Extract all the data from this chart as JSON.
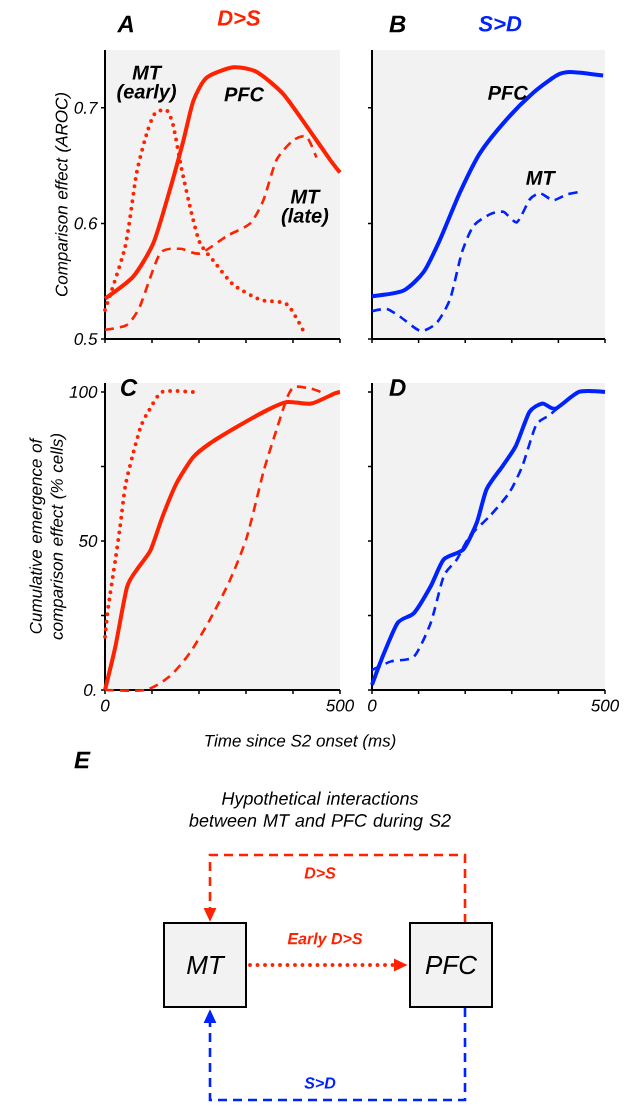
{
  "chart_data": [
    {
      "type": "line",
      "title": "D>S",
      "annotations": [
        "A"
      ],
      "ylabel": "Comparison effect (AROC)",
      "xlim": [
        0,
        500
      ],
      "ylim": [
        0.5,
        0.75
      ],
      "xticks": [
        0,
        100,
        200,
        300,
        400,
        500
      ],
      "yticks": [
        0.5,
        0.6,
        0.7
      ],
      "tick_labels": "y",
      "series": [
        {
          "name": "PFC",
          "color": "#ff2200",
          "line_style": "solid",
          "x": [
            0,
            60,
            103,
            138,
            167,
            188,
            216,
            273,
            323,
            379,
            436,
            479,
            500
          ],
          "values": [
            0.535,
            0.554,
            0.583,
            0.629,
            0.672,
            0.706,
            0.726,
            0.735,
            0.731,
            0.712,
            0.68,
            0.655,
            0.644
          ]
        },
        {
          "name": "MT (early)",
          "color": "#ff2200",
          "line_style": "dotted",
          "x": [
            0,
            43,
            67,
            89,
            106,
            131,
            145,
            163,
            184,
            202,
            230,
            273,
            330,
            387,
            422
          ],
          "values": [
            0.525,
            0.58,
            0.643,
            0.678,
            0.695,
            0.698,
            0.685,
            0.647,
            0.609,
            0.583,
            0.568,
            0.547,
            0.534,
            0.53,
            0.507
          ]
        },
        {
          "name": "MT (late)",
          "color": "#ff2200",
          "line_style": "dashed",
          "x": [
            0,
            46,
            74,
            117,
            160,
            202,
            259,
            309,
            337,
            365,
            401,
            429,
            450
          ],
          "values": [
            0.508,
            0.512,
            0.528,
            0.574,
            0.578,
            0.574,
            0.589,
            0.6,
            0.62,
            0.655,
            0.672,
            0.675,
            0.657
          ]
        }
      ]
    },
    {
      "type": "line",
      "title": "S>D",
      "annotations": [
        "B"
      ],
      "xlim": [
        0,
        500
      ],
      "ylim": [
        0.5,
        0.75
      ],
      "xticks": [
        0,
        100,
        200,
        300,
        400,
        500
      ],
      "yticks": [
        0.5,
        0.6,
        0.7
      ],
      "tick_labels": false,
      "series": [
        {
          "name": "PFC",
          "color": "#0022ff",
          "line_style": "solid",
          "x": [
            0,
            68,
            111,
            146,
            189,
            232,
            289,
            346,
            396,
            425,
            496
          ],
          "values": [
            0.537,
            0.542,
            0.558,
            0.586,
            0.627,
            0.661,
            0.69,
            0.713,
            0.728,
            0.731,
            0.728
          ]
        },
        {
          "name": "MT",
          "color": "#0022ff",
          "line_style": "dashed",
          "x": [
            0,
            32,
            61,
            104,
            139,
            168,
            193,
            218,
            254,
            282,
            311,
            339,
            361,
            389,
            418,
            443
          ],
          "values": [
            0.524,
            0.526,
            0.519,
            0.507,
            0.514,
            0.535,
            0.575,
            0.598,
            0.608,
            0.61,
            0.601,
            0.621,
            0.626,
            0.62,
            0.625,
            0.627
          ]
        }
      ]
    },
    {
      "type": "line",
      "annotations": [
        "C"
      ],
      "xlabel": "Time since S2 onset (ms)",
      "ylabel": "Cumulative emergence of comparison effect (% cells)",
      "xlim": [
        0,
        500
      ],
      "ylim": [
        0,
        103
      ],
      "xticks": [
        0,
        {
          "value": 100,
          "label": null
        },
        {
          "value": 200,
          "label": null
        },
        {
          "value": 300,
          "label": null
        },
        {
          "value": 400,
          "label": null
        },
        500
      ],
      "yticks": [
        {
          "value": 0,
          "label": "0."
        },
        {
          "value": 25,
          "label": null
        },
        50,
        {
          "value": 75,
          "label": null
        },
        100
      ],
      "series": [
        {
          "color": "#ff2200",
          "line_style": "solid",
          "x": [
            0,
            22,
            47,
            72,
            97,
            122,
            151,
            187,
            223,
            281,
            345,
            388,
            439,
            489,
            500
          ],
          "values": [
            0,
            14.5,
            34.6,
            41.3,
            46.9,
            58,
            69,
            78,
            82.7,
            88.3,
            93.9,
            96.6,
            96.1,
            99.5,
            100
          ]
        },
        {
          "color": "#ff2200",
          "line_style": "dotted",
          "x": [
            0,
            7,
            22,
            32,
            43,
            58,
            76,
            94,
            122,
            187
          ],
          "values": [
            17.9,
            27.9,
            43.6,
            54.7,
            68.2,
            78.2,
            88.3,
            93.9,
            100,
            100
          ]
        },
        {
          "color": "#ff2200",
          "line_style": "dashed",
          "x": [
            0,
            86,
            137,
            180,
            223,
            266,
            302,
            338,
            367,
            388,
            403,
            439,
            468
          ],
          "values": [
            0,
            0,
            4.5,
            12.3,
            23.5,
            36.9,
            51.4,
            73.7,
            88.3,
            98.3,
            101.7,
            101.1,
            99.4
          ]
        }
      ]
    },
    {
      "type": "line",
      "annotations": [
        "D"
      ],
      "xlim": [
        0,
        500
      ],
      "ylim": [
        0,
        103
      ],
      "xticks": [
        0,
        {
          "value": 100,
          "label": null
        },
        {
          "value": 200,
          "label": null
        },
        {
          "value": 300,
          "label": null
        },
        {
          "value": 400,
          "label": null
        },
        500
      ],
      "yticks": [
        0,
        25,
        50,
        75,
        100
      ],
      "tick_labels": "x",
      "series": [
        {
          "color": "#0022ff",
          "line_style": "solid",
          "x": [
            0,
            20,
            55,
            90,
            126,
            154,
            196,
            225,
            246,
            281,
            309,
            338,
            366,
            394,
            444,
            500
          ],
          "values": [
            1.7,
            10.1,
            22.5,
            25.8,
            34.8,
            43.8,
            47.2,
            56.2,
            67.4,
            75.3,
            82,
            93.3,
            96.1,
            94.4,
            100,
            100
          ]
        },
        {
          "color": "#0022ff",
          "line_style": "dashed",
          "x": [
            0,
            41,
            90,
            126,
            154,
            182,
            210,
            253,
            295,
            323,
            352,
            380,
            401
          ],
          "values": [
            6.7,
            9.6,
            11.2,
            22.5,
            38.2,
            43.8,
            51.7,
            58.4,
            66.3,
            75.3,
            88.8,
            92.1,
            94.9
          ]
        }
      ]
    },
    {
      "type": "other",
      "title": "Hypothetical interactions between MT and PFC during S2",
      "annotations": [
        "E",
        "MT",
        "PFC",
        "D>S",
        "Early D>S",
        "S>D"
      ]
    }
  ]
}
